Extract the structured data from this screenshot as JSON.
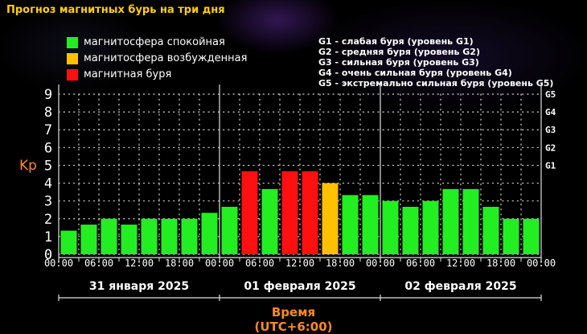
{
  "title": "Прогноз магнитных бурь на три дня",
  "legend": [
    {
      "label": "магнитосфера спокойная",
      "color": "#22ee22"
    },
    {
      "label": "магнитосфера возбужденная",
      "color": "#ffc000"
    },
    {
      "label": "магнитная буря",
      "color": "#ff1010"
    }
  ],
  "storm_levels": [
    "G1 - слабая буря (уровень G1)",
    "G2 - средняя буря (уровень G2)",
    "G3 - сильная буря (уровень G3)",
    "G4 - очень сильная буря (уровень G4)",
    "G5 - экстремально сильная буря (уровень G5)"
  ],
  "chart_data": {
    "type": "bar",
    "ylabel": "Kp",
    "xlabel": "Время (UTC+6:00)",
    "ylim": [
      0,
      9
    ],
    "y_ticks": [
      "0",
      "1",
      "2",
      "3",
      "4",
      "5",
      "6",
      "7",
      "8",
      "9"
    ],
    "g_ticks": [
      {
        "label": "G1",
        "value": 5
      },
      {
        "label": "G2",
        "value": 6
      },
      {
        "label": "G3",
        "value": 7
      },
      {
        "label": "G4",
        "value": 8
      },
      {
        "label": "G5",
        "value": 9
      }
    ],
    "x_tick_labels": [
      "00:00",
      "06:00",
      "12:00",
      "18:00",
      "00:00",
      "06:00",
      "12:00",
      "18:00",
      "00:00",
      "06:00",
      "12:00",
      "18:00",
      "00:00"
    ],
    "days": [
      "31 января 2025",
      "01 февраля 2025",
      "02 февраля 2025"
    ],
    "values": [
      1.33,
      1.67,
      2.0,
      1.67,
      2.0,
      2.0,
      2.0,
      2.33,
      2.67,
      4.67,
      3.67,
      4.67,
      4.67,
      4.0,
      3.33,
      3.33,
      3.0,
      2.67,
      3.0,
      3.67,
      3.67,
      2.67,
      2.0,
      2.0
    ],
    "colors": [
      "#22ee22",
      "#22ee22",
      "#22ee22",
      "#22ee22",
      "#22ee22",
      "#22ee22",
      "#22ee22",
      "#22ee22",
      "#22ee22",
      "#ff1010",
      "#22ee22",
      "#ff1010",
      "#ff1010",
      "#ffc000",
      "#22ee22",
      "#22ee22",
      "#22ee22",
      "#22ee22",
      "#22ee22",
      "#22ee22",
      "#22ee22",
      "#22ee22",
      "#22ee22",
      "#22ee22"
    ],
    "grid": true
  }
}
